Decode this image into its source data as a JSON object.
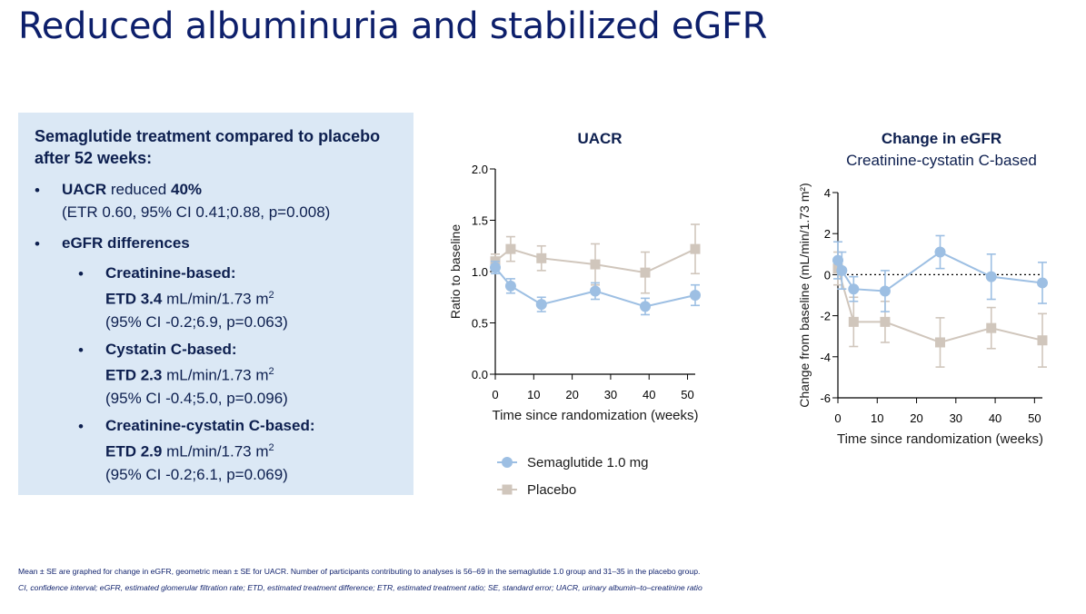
{
  "title": "Reduced albuminuria and stabilized eGFR",
  "summary": {
    "heading": "Semaglutide treatment compared to placebo after 52 weeks:",
    "uacr_term": "UACR",
    "uacr_text": " reduced ",
    "uacr_value": "40%",
    "uacr_detail": "(ETR 0.60, 95% CI 0.41;0.88, p=0.008)",
    "egfr_heading": "eGFR differences",
    "sub": [
      {
        "name": "Creatinine-based:",
        "etd_label": "ETD 3.4",
        "unit": " mL/min/1.73 m",
        "sup": "2",
        "ci": "(95% CI -0.2;6.9, p=0.063)"
      },
      {
        "name": "Cystatin C-based:",
        "etd_label": "ETD 2.3",
        "unit": " mL/min/1.73 m",
        "sup": "2",
        "ci": "(95% CI -0.4;5.0, p=0.096)"
      },
      {
        "name": "Creatinine-cystatin C-based:",
        "etd_label": "ETD 2.9",
        "unit": " mL/min/1.73 m",
        "sup": "2",
        "ci": "(95% CI -0.2;6.1, p=0.069)"
      }
    ]
  },
  "legend": {
    "items": [
      {
        "label": "Semaglutide 1.0 mg",
        "color": "#9dbfe3"
      },
      {
        "label": "Placebo",
        "color": "#d0c6bc"
      }
    ]
  },
  "footnotes": {
    "line1": "Mean ± SE are graphed for change in eGFR, geometric mean ± SE for UACR. Number of participants contributing to analyses is 56–69 in the semaglutide 1.0 group and 31–35 in the placebo group.",
    "line2": "CI, confidence interval; eGFR, estimated glomerular filtration rate; ETD, estimated treatment difference; ETR, estimated treatment ratio; SE, standard error; UACR, urinary albumin–to–creatinine ratio"
  },
  "chart_data": [
    {
      "type": "line",
      "title": "UACR",
      "subtitle": "",
      "xlabel": "Time since randomization (weeks)",
      "ylabel": "Ratio to baseline",
      "xlim": [
        0,
        52
      ],
      "ylim": [
        0,
        2.0
      ],
      "xticks": [
        0,
        10,
        20,
        30,
        40,
        50
      ],
      "yticks": [
        "0.0",
        "0.5",
        "1.0",
        "1.5",
        "2.0"
      ],
      "reference_line": null,
      "series": [
        {
          "name": "Placebo",
          "color": "#d0c6bc",
          "marker": "square",
          "x": [
            0,
            4,
            12,
            26,
            39,
            52
          ],
          "y": [
            1.1,
            1.22,
            1.13,
            1.07,
            0.99,
            1.22
          ],
          "err": [
            0.07,
            0.12,
            0.12,
            0.2,
            0.2,
            0.24
          ]
        },
        {
          "name": "Semaglutide 1.0 mg",
          "color": "#9dbfe3",
          "marker": "circle",
          "x": [
            0,
            4,
            12,
            26,
            39,
            52
          ],
          "y": [
            1.04,
            0.86,
            0.68,
            0.81,
            0.66,
            0.77
          ],
          "err": [
            0.06,
            0.07,
            0.07,
            0.08,
            0.08,
            0.1
          ]
        }
      ]
    },
    {
      "type": "line",
      "title": "Change in eGFR",
      "subtitle": "Creatinine-cystatin C-based",
      "xlabel": "Time since randomization (weeks)",
      "ylabel": "Change from baseline (mL/min/1.73 m²)",
      "xlim": [
        0,
        52
      ],
      "ylim": [
        -6,
        4
      ],
      "xticks": [
        0,
        10,
        20,
        30,
        40,
        50
      ],
      "yticks": [
        "-6",
        "-4",
        "-2",
        "0",
        "2",
        "4"
      ],
      "reference_line": 0,
      "series": [
        {
          "name": "Placebo",
          "color": "#d0c6bc",
          "marker": "square",
          "x": [
            0,
            4,
            12,
            26,
            39,
            52
          ],
          "y": [
            0.3,
            -2.3,
            -2.3,
            -3.3,
            -2.6,
            -3.2
          ],
          "err": [
            0.8,
            1.2,
            1.0,
            1.2,
            1.0,
            1.3
          ]
        },
        {
          "name": "Semaglutide 1.0 mg",
          "color": "#9dbfe3",
          "marker": "circle",
          "x": [
            0,
            1,
            4,
            12,
            26,
            39,
            52
          ],
          "y": [
            0.7,
            0.2,
            -0.7,
            -0.8,
            1.1,
            -0.1,
            -0.4
          ],
          "err": [
            0.9,
            0.9,
            0.6,
            1.0,
            0.8,
            1.1,
            1.0
          ]
        }
      ]
    }
  ]
}
